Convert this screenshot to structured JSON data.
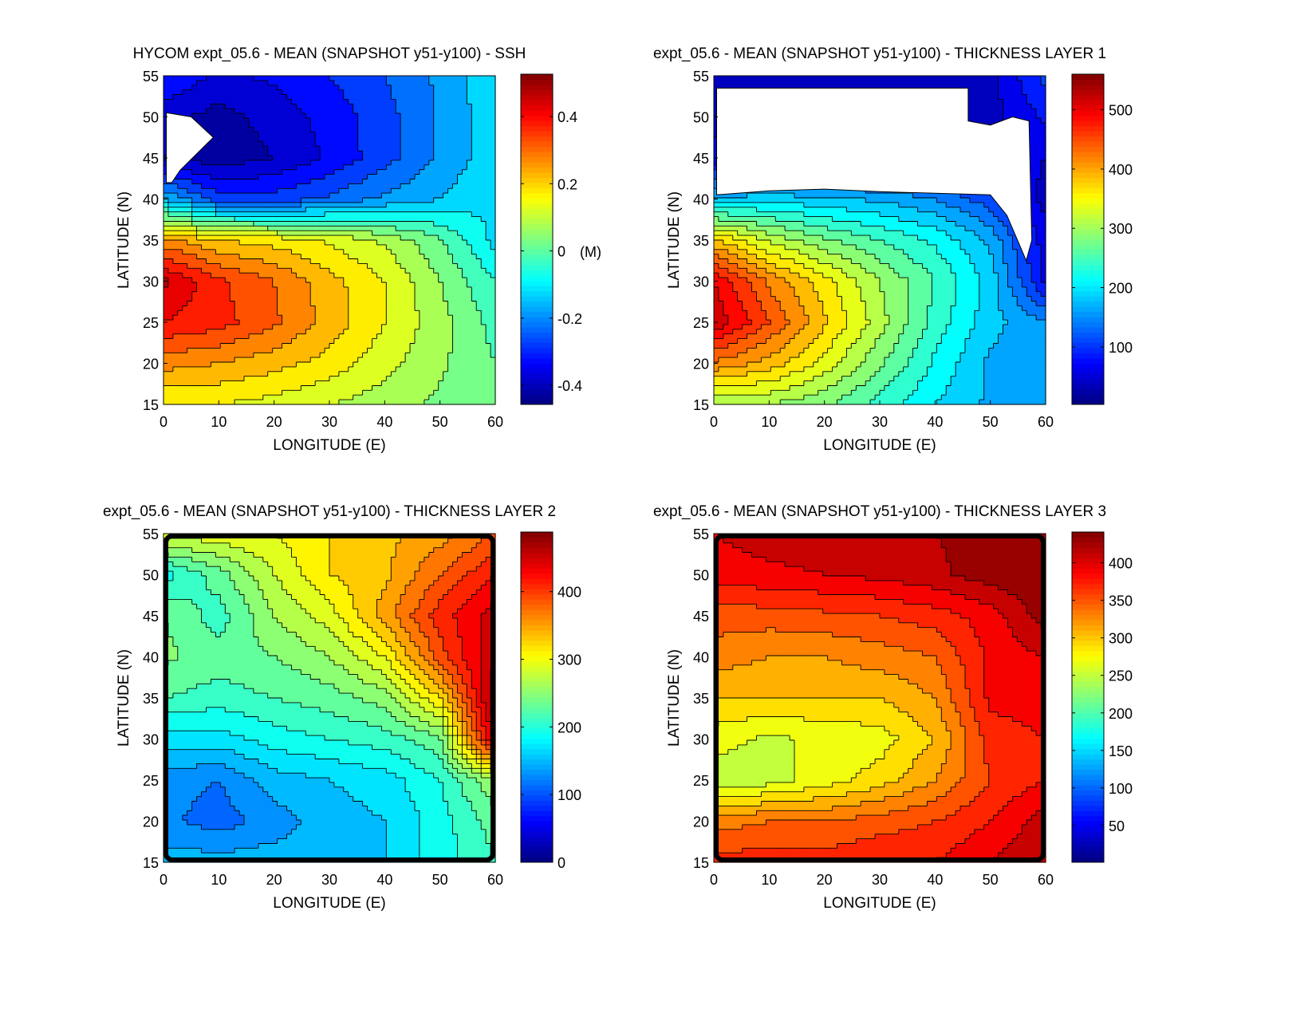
{
  "chart_data": [
    {
      "type": "heatmap",
      "style": "filled-contour",
      "title": "HYCOM expt_05.6 - MEAN (SNAPSHOT y51-y100) - SSH",
      "xlabel": "LONGITUDE (E)",
      "ylabel": "LATITUDE (N)",
      "xlim": [
        0,
        60
      ],
      "ylim": [
        15,
        55
      ],
      "xticks": [
        0,
        10,
        20,
        30,
        40,
        50,
        60
      ],
      "yticks": [
        15,
        20,
        25,
        30,
        35,
        40,
        45,
        50,
        55
      ],
      "colorbar": {
        "range": [
          -0.457,
          0.526
        ],
        "ticks": [
          "-0.4",
          "-0.2",
          "0",
          "0.2",
          "0.4"
        ],
        "tick_values": [
          -0.4,
          -0.2,
          0,
          0.2,
          0.4
        ],
        "unit_label": "(M)"
      },
      "contour_step": 0.05,
      "grid_lon": [
        0,
        10,
        20,
        30,
        40,
        50,
        60
      ],
      "grid_lat": [
        55,
        50,
        45,
        40,
        35,
        30,
        25,
        20,
        15
      ],
      "values": [
        [
          -0.3,
          -0.36,
          -0.34,
          -0.3,
          -0.25,
          -0.19,
          -0.1
        ],
        [
          -0.38,
          -0.42,
          -0.38,
          -0.33,
          -0.27,
          -0.19,
          -0.12
        ],
        [
          -0.4,
          -0.43,
          -0.4,
          -0.34,
          -0.27,
          -0.19,
          -0.12
        ],
        [
          -0.15,
          -0.28,
          -0.28,
          -0.24,
          -0.19,
          -0.15,
          -0.1
        ],
        [
          0.27,
          0.2,
          0.18,
          0.14,
          0.09,
          0.01,
          -0.12
        ],
        [
          0.46,
          0.36,
          0.3,
          0.22,
          0.15,
          0.05,
          -0.05
        ],
        [
          0.4,
          0.37,
          0.31,
          0.23,
          0.15,
          0.07,
          -0.02
        ],
        [
          0.27,
          0.25,
          0.22,
          0.18,
          0.12,
          0.06,
          0.0
        ],
        [
          0.15,
          0.15,
          0.13,
          0.1,
          0.07,
          0.04,
          0.0
        ]
      ],
      "masked_regions": [
        [
          [
            0.5,
            50.5
          ],
          [
            5,
            50
          ],
          [
            9,
            47.5
          ],
          [
            6,
            45.5
          ],
          [
            3,
            43.5
          ],
          [
            1.5,
            42
          ],
          [
            0.5,
            42
          ]
        ]
      ],
      "border": "thin"
    },
    {
      "type": "heatmap",
      "style": "filled-contour",
      "title": "expt_05.6 - MEAN (SNAPSHOT y51-y100) - THICKNESS LAYER 1",
      "xlabel": "LONGITUDE (E)",
      "ylabel": "LATITUDE (N)",
      "xlim": [
        0,
        60
      ],
      "ylim": [
        15,
        55
      ],
      "xticks": [
        0,
        10,
        20,
        30,
        40,
        50,
        60
      ],
      "yticks": [
        15,
        20,
        25,
        30,
        35,
        40,
        45,
        50,
        55
      ],
      "colorbar": {
        "range": [
          3,
          560
        ],
        "ticks": [
          "100",
          "200",
          "300",
          "400",
          "500"
        ],
        "tick_values": [
          100,
          200,
          300,
          400,
          500
        ],
        "unit_label": ""
      },
      "contour_step": 25,
      "grid_lon": [
        0,
        10,
        20,
        30,
        40,
        50,
        60
      ],
      "grid_lat": [
        55,
        50,
        45,
        40,
        35,
        30,
        25,
        20,
        15
      ],
      "values": [
        [
          40,
          30,
          30,
          30,
          30,
          40,
          110
        ],
        [
          40,
          30,
          30,
          30,
          30,
          40,
          80
        ],
        [
          60,
          60,
          60,
          60,
          60,
          60,
          50
        ],
        [
          180,
          190,
          180,
          170,
          150,
          110,
          40
        ],
        [
          380,
          320,
          280,
          250,
          220,
          170,
          60
        ],
        [
          500,
          420,
          360,
          300,
          250,
          190,
          70
        ],
        [
          520,
          450,
          380,
          310,
          240,
          185,
          150
        ],
        [
          420,
          390,
          340,
          280,
          220,
          170,
          150
        ],
        [
          300,
          300,
          280,
          240,
          200,
          170,
          150
        ]
      ],
      "masked_regions": [
        [
          [
            0.5,
            53.5
          ],
          [
            46,
            53.5
          ],
          [
            46,
            49.5
          ],
          [
            50,
            49
          ],
          [
            54,
            50
          ],
          [
            57,
            49.5
          ],
          [
            57.5,
            35
          ],
          [
            56.5,
            32.5
          ],
          [
            53,
            38
          ],
          [
            50,
            40.5
          ],
          [
            40,
            40.7
          ],
          [
            30,
            40.9
          ],
          [
            20,
            41.2
          ],
          [
            10,
            41
          ],
          [
            0.5,
            40.5
          ]
        ]
      ],
      "border": "thin"
    },
    {
      "type": "heatmap",
      "style": "filled-contour",
      "title": "expt_05.6 - MEAN (SNAPSHOT y51-y100) - THICKNESS LAYER 2",
      "xlabel": "LONGITUDE (E)",
      "ylabel": "LATITUDE (N)",
      "xlim": [
        0,
        60
      ],
      "ylim": [
        15,
        55
      ],
      "xticks": [
        0,
        10,
        20,
        30,
        40,
        50,
        60
      ],
      "yticks": [
        15,
        20,
        25,
        30,
        35,
        40,
        45,
        50,
        55
      ],
      "colorbar": {
        "range": [
          0,
          488
        ],
        "ticks": [
          "0",
          "100",
          "200",
          "300",
          "400"
        ],
        "tick_values": [
          0,
          100,
          200,
          300,
          400
        ],
        "unit_label": ""
      },
      "contour_step": 20,
      "grid_lon": [
        0,
        10,
        20,
        30,
        40,
        50,
        60
      ],
      "grid_lat": [
        55,
        50,
        45,
        40,
        35,
        30,
        25,
        20,
        15
      ],
      "values": [
        [
          290,
          295,
          300,
          320,
          335,
          350,
          380
        ],
        [
          190,
          230,
          280,
          320,
          335,
          380,
          420
        ],
        [
          240,
          210,
          260,
          290,
          350,
          410,
          450
        ],
        [
          245,
          230,
          240,
          260,
          300,
          390,
          460
        ],
        [
          220,
          210,
          220,
          230,
          250,
          320,
          475
        ],
        [
          170,
          170,
          190,
          200,
          210,
          235,
          460
        ],
        [
          130,
          120,
          150,
          160,
          170,
          200,
          260
        ],
        [
          125,
          110,
          130,
          150,
          160,
          190,
          230
        ],
        [
          150,
          150,
          150,
          150,
          160,
          190,
          220
        ]
      ],
      "masked_regions": [],
      "border": "thick"
    },
    {
      "type": "heatmap",
      "style": "filled-contour",
      "title": "expt_05.6 - MEAN (SNAPSHOT y51-y100) - THICKNESS LAYER 3",
      "xlabel": "LONGITUDE (E)",
      "ylabel": "LATITUDE (N)",
      "xlim": [
        0,
        60
      ],
      "ylim": [
        15,
        55
      ],
      "xticks": [
        0,
        10,
        20,
        30,
        40,
        50,
        60
      ],
      "yticks": [
        15,
        20,
        25,
        30,
        35,
        40,
        45,
        50,
        55
      ],
      "colorbar": {
        "range": [
          1,
          441
        ],
        "ticks": [
          "50",
          "100",
          "150",
          "200",
          "250",
          "300",
          "350",
          "400"
        ],
        "tick_values": [
          50,
          100,
          150,
          200,
          250,
          300,
          350,
          400
        ],
        "unit_label": ""
      },
      "contour_step": 20,
      "grid_lon": [
        0,
        10,
        20,
        30,
        40,
        50,
        60
      ],
      "grid_lat": [
        55,
        50,
        45,
        40,
        35,
        30,
        25,
        20,
        15
      ],
      "values": [
        [
          400,
          410,
          410,
          410,
          420,
          430,
          430
        ],
        [
          390,
          395,
          400,
          405,
          415,
          430,
          440
        ],
        [
          350,
          350,
          355,
          360,
          370,
          390,
          430
        ],
        [
          330,
          320,
          320,
          330,
          340,
          385,
          400
        ],
        [
          300,
          300,
          300,
          300,
          320,
          385,
          390
        ],
        [
          270,
          255,
          265,
          270,
          300,
          370,
          380
        ],
        [
          245,
          250,
          270,
          290,
          320,
          360,
          380
        ],
        [
          330,
          340,
          340,
          350,
          360,
          380,
          410
        ],
        [
          370,
          370,
          370,
          380,
          380,
          400,
          420
        ]
      ],
      "masked_regions": [],
      "border": "thick"
    }
  ]
}
